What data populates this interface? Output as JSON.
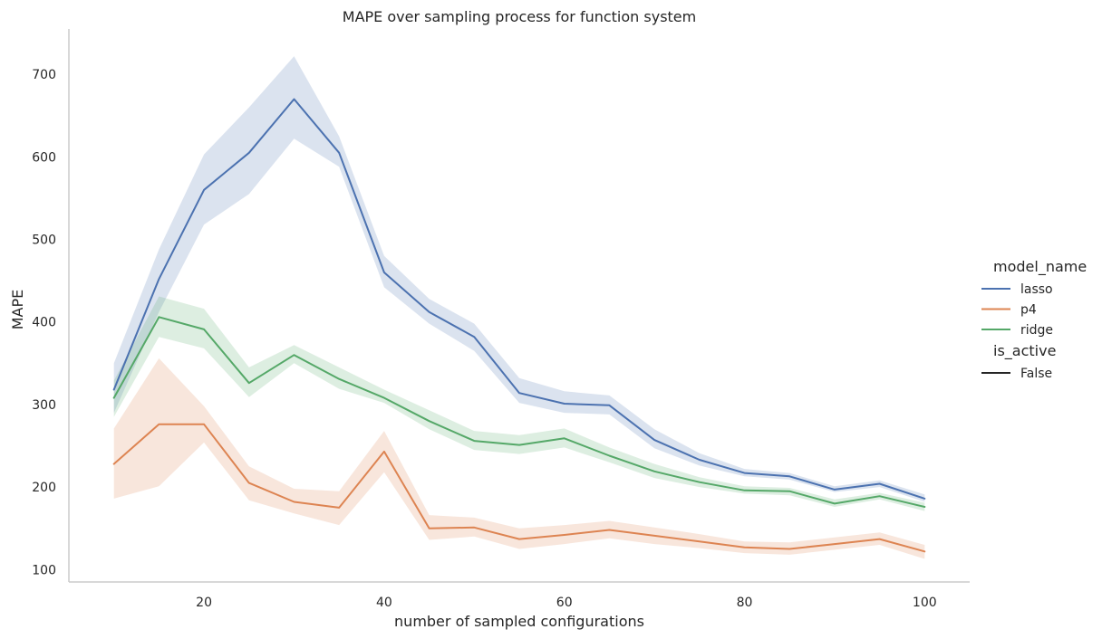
{
  "chart_data": {
    "type": "line",
    "title": "MAPE over sampling process for function system",
    "xlabel": "number of sampled configurations",
    "ylabel": "MAPE",
    "xlim": [
      5,
      105
    ],
    "ylim": [
      85,
      755
    ],
    "xticks": [
      20,
      40,
      60,
      80,
      100
    ],
    "yticks": [
      100,
      200,
      300,
      400,
      500,
      600,
      700
    ],
    "grid": false,
    "legend": {
      "placement": "right",
      "hue_title": "model_name",
      "style_title": "is_active",
      "style_entries": [
        "False"
      ]
    },
    "x": [
      10,
      15,
      20,
      25,
      30,
      35,
      40,
      45,
      50,
      55,
      60,
      65,
      70,
      75,
      80,
      85,
      90,
      95,
      100
    ],
    "series": [
      {
        "name": "lasso",
        "color": "#4c72b0",
        "values": [
          318,
          452,
          560,
          605,
          670,
          605,
          460,
          412,
          382,
          314,
          301,
          299,
          257,
          233,
          217,
          213,
          197,
          204,
          186
        ],
        "lower": [
          290,
          412,
          518,
          555,
          622,
          588,
          442,
          398,
          365,
          302,
          290,
          288,
          247,
          226,
          213,
          209,
          194,
          200,
          182
        ],
        "upper": [
          350,
          488,
          603,
          660,
          722,
          625,
          480,
          428,
          398,
          332,
          316,
          311,
          270,
          241,
          222,
          217,
          201,
          208,
          191
        ]
      },
      {
        "name": "p4",
        "color": "#dd8452",
        "values": [
          228,
          276,
          276,
          205,
          182,
          175,
          243,
          150,
          151,
          137,
          142,
          148,
          141,
          134,
          127,
          125,
          131,
          137,
          122
        ],
        "lower": [
          186,
          201,
          254,
          184,
          168,
          154,
          218,
          136,
          140,
          125,
          131,
          138,
          131,
          126,
          120,
          118,
          124,
          130,
          113
        ],
        "upper": [
          271,
          356,
          298,
          225,
          198,
          195,
          268,
          166,
          163,
          150,
          154,
          159,
          151,
          143,
          134,
          133,
          139,
          145,
          130
        ]
      },
      {
        "name": "ridge",
        "color": "#55a868",
        "values": [
          308,
          406,
          391,
          326,
          360,
          331,
          308,
          280,
          256,
          251,
          259,
          238,
          219,
          206,
          196,
          195,
          180,
          189,
          176
        ],
        "lower": [
          285,
          382,
          368,
          309,
          350,
          319,
          302,
          270,
          245,
          240,
          248,
          230,
          211,
          200,
          192,
          190,
          176,
          185,
          171
        ],
        "upper": [
          329,
          431,
          416,
          345,
          372,
          345,
          318,
          293,
          268,
          263,
          271,
          248,
          228,
          212,
          201,
          199,
          185,
          193,
          181
        ]
      }
    ]
  }
}
